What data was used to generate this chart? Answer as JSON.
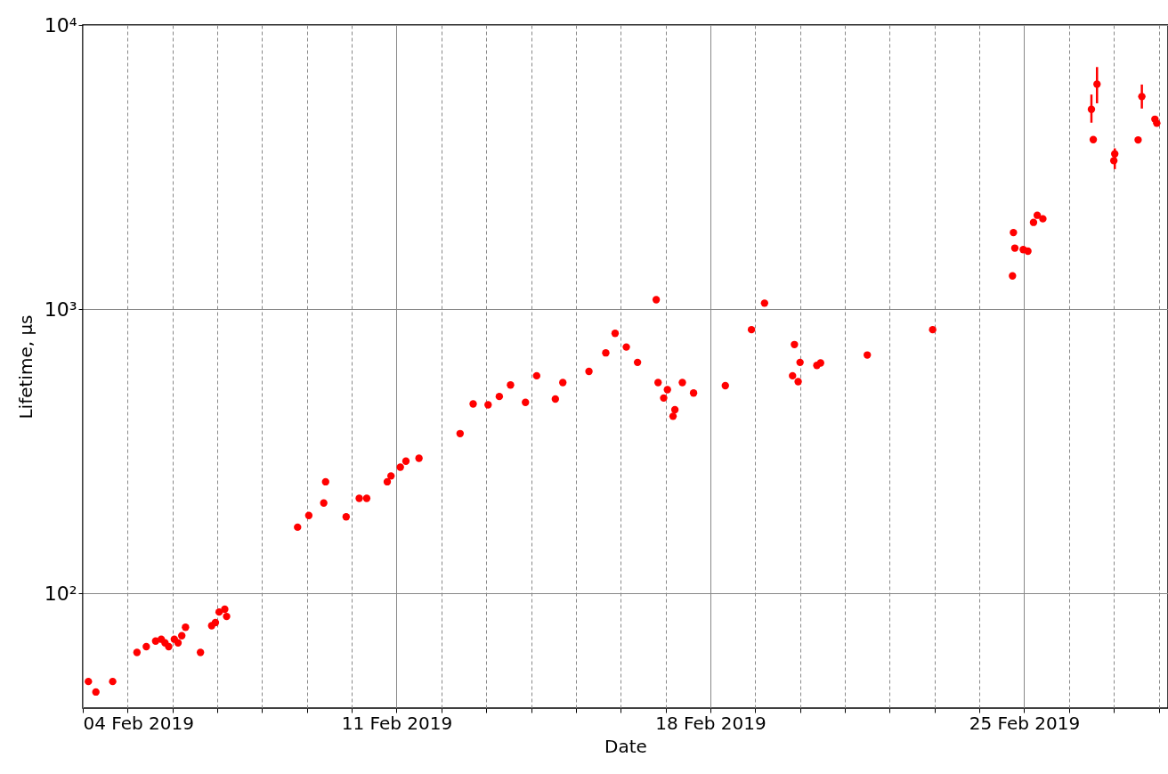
{
  "chart_data": {
    "type": "scatter",
    "xlabel": "Date",
    "ylabel": "Lifetime, μs",
    "log": "y",
    "grid": true,
    "marker": "circle",
    "xlim": [
      "2019-02-04",
      "2019-02-28T05:00"
    ],
    "xticks": [
      {
        "value": "2019-02-04",
        "label": "04 Feb 2019"
      },
      {
        "value": "2019-02-05",
        "label": null
      },
      {
        "value": "2019-02-06",
        "label": null
      },
      {
        "value": "2019-02-07",
        "label": null
      },
      {
        "value": "2019-02-08",
        "label": null
      },
      {
        "value": "2019-02-09",
        "label": null
      },
      {
        "value": "2019-02-10",
        "label": null
      },
      {
        "value": "2019-02-11",
        "label": "11 Feb 2019"
      },
      {
        "value": "2019-02-12",
        "label": null
      },
      {
        "value": "2019-02-13",
        "label": null
      },
      {
        "value": "2019-02-14",
        "label": null
      },
      {
        "value": "2019-02-15",
        "label": null
      },
      {
        "value": "2019-02-16",
        "label": null
      },
      {
        "value": "2019-02-17",
        "label": null
      },
      {
        "value": "2019-02-18",
        "label": "18 Feb 2019"
      },
      {
        "value": "2019-02-19",
        "label": null
      },
      {
        "value": "2019-02-20",
        "label": null
      },
      {
        "value": "2019-02-21",
        "label": null
      },
      {
        "value": "2019-02-22",
        "label": null
      },
      {
        "value": "2019-02-23",
        "label": null
      },
      {
        "value": "2019-02-24",
        "label": null
      },
      {
        "value": "2019-02-25",
        "label": "25 Feb 2019"
      },
      {
        "value": "2019-02-26",
        "label": null
      },
      {
        "value": "2019-02-27",
        "label": null
      },
      {
        "value": "2019-02-28",
        "label": null
      }
    ],
    "ylim": [
      39.5,
      10000
    ],
    "yticks": [
      {
        "value": 100,
        "label": "10²"
      },
      {
        "value": 1000,
        "label": "10³"
      },
      {
        "value": 10000,
        "label": "10⁴"
      }
    ],
    "series": [
      {
        "color": "#ff0000",
        "x": [
          "2019-02-04T03:00",
          "2019-02-04T07:00",
          "2019-02-04T16:00",
          "2019-02-05T05:00",
          "2019-02-05T10:00",
          "2019-02-05T15:00",
          "2019-02-05T18:00",
          "2019-02-05T20:00",
          "2019-02-05T22:00",
          "2019-02-06T01:00",
          "2019-02-06T03:00",
          "2019-02-06T05:00",
          "2019-02-06T07:00",
          "2019-02-06T15:00",
          "2019-02-06T21:00",
          "2019-02-06T23:00",
          "2019-02-07T01:00",
          "2019-02-07T04:00",
          "2019-02-07T05:00",
          "2019-02-08T19:00",
          "2019-02-09T01:00",
          "2019-02-09T09:00",
          "2019-02-09T10:00",
          "2019-02-09T21:00",
          "2019-02-10T04:00",
          "2019-02-10T08:00",
          "2019-02-10T19:00",
          "2019-02-10T21:00",
          "2019-02-11T02:00",
          "2019-02-11T05:00",
          "2019-02-11T12:00",
          "2019-02-12T10:00",
          "2019-02-12T17:00",
          "2019-02-13T01:00",
          "2019-02-13T07:00",
          "2019-02-13T13:00",
          "2019-02-13T21:00",
          "2019-02-14T03:00",
          "2019-02-14T13:00",
          "2019-02-14T17:00",
          "2019-02-15T07:00",
          "2019-02-15T16:00",
          "2019-02-15T21:00",
          "2019-02-16T03:00",
          "2019-02-16T09:00",
          "2019-02-16T19:00",
          "2019-02-16T20:00",
          "2019-02-16T23:00",
          "2019-02-17T01:00",
          "2019-02-17T05:00",
          "2019-02-17T04:00",
          "2019-02-17T09:00",
          "2019-02-17T15:00",
          "2019-02-18T08:00",
          "2019-02-18T22:00",
          "2019-02-19T05:00",
          "2019-02-19T21:00",
          "2019-02-19T20:00",
          "2019-02-20T00:00",
          "2019-02-19T23:00",
          "2019-02-20T09:00",
          "2019-02-20T11:00",
          "2019-02-21T12:00",
          "2019-02-22T23:00",
          "2019-02-24T17:45",
          "2019-02-24T18:15",
          "2019-02-24T19:00",
          "2019-02-24T23:30",
          "2019-02-25T02:00",
          "2019-02-25T05:00",
          "2019-02-25T07:00",
          "2019-02-25T10:00",
          "2019-02-26T12:00",
          "2019-02-26T13:00",
          "2019-02-26T15:00",
          "2019-02-27T00:30",
          "2019-02-27T00:00",
          "2019-02-27T13:00",
          "2019-02-27T15:00",
          "2019-02-27T22:00",
          "2019-02-27T23:00"
        ],
        "values": [
          49,
          45,
          49,
          62,
          65,
          68,
          69,
          67,
          65,
          69,
          67,
          71,
          76,
          62,
          77,
          79,
          86,
          88,
          83,
          171,
          188,
          208,
          247,
          186,
          216,
          216,
          247,
          259,
          278,
          292,
          299,
          365,
          464,
          461,
          493,
          541,
          470,
          583,
          483,
          552,
          604,
          702,
          822,
          736,
          650,
          1080,
          552,
          487,
          521,
          443,
          420,
          552,
          507,
          538,
          847,
          1050,
          751,
          583,
          650,
          556,
          634,
          647,
          690,
          847,
          1310,
          1860,
          1640,
          1620,
          1600,
          2020,
          2140,
          2080,
          5050,
          3950,
          6190,
          3520,
          3330,
          3940,
          5600,
          4660,
          4510
        ],
        "errors": [
          null,
          null,
          null,
          null,
          null,
          null,
          null,
          null,
          null,
          null,
          null,
          null,
          null,
          null,
          null,
          null,
          null,
          null,
          null,
          null,
          null,
          null,
          null,
          null,
          null,
          null,
          null,
          null,
          null,
          null,
          null,
          null,
          null,
          null,
          null,
          null,
          null,
          null,
          null,
          null,
          null,
          null,
          null,
          null,
          null,
          null,
          null,
          null,
          null,
          null,
          null,
          null,
          null,
          null,
          null,
          null,
          null,
          null,
          null,
          null,
          null,
          null,
          null,
          null,
          null,
          null,
          null,
          null,
          null,
          null,
          null,
          null,
          [
            4530,
            5690
          ],
          null,
          [
            5300,
            7110
          ],
          [
            3110,
            3680
          ],
          null,
          null,
          [
            5080,
            6170
          ],
          null,
          null
        ]
      }
    ]
  }
}
